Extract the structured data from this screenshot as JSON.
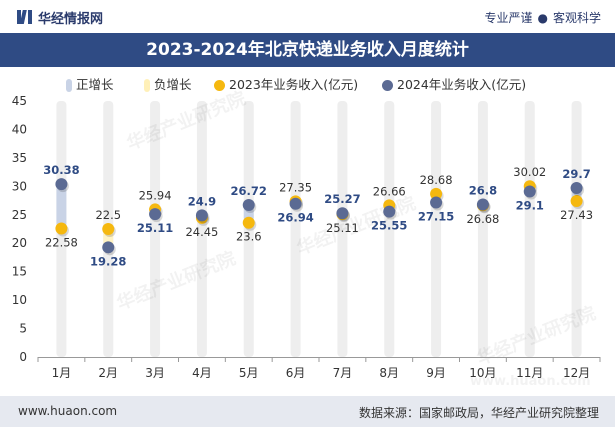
{
  "header": {
    "brand": "华经情报网",
    "tagline_left": "专业严谨",
    "tagline_sep": "●",
    "tagline_right": "客观科学"
  },
  "footer": {
    "website": "www.huaon.com",
    "source": "数据来源：国家邮政局，华经产业研究院整理"
  },
  "colors": {
    "title_bg": "#2f4b84",
    "series_2023": "#f5b80f",
    "series_2024": "#5b6a93",
    "increase_bar": "#c9d3e6",
    "decrease_bar": "#fff3c4",
    "column_band": "#eeeeee"
  },
  "chart_data": {
    "type": "line",
    "title": "2023-2024年北京快递业务收入月度统计",
    "xlabel": "",
    "ylabel": "",
    "ylim": [
      0,
      45
    ],
    "yticks": [
      0,
      5,
      10,
      15,
      20,
      25,
      30,
      35,
      40,
      45
    ],
    "categories": [
      "1月",
      "2月",
      "3月",
      "4月",
      "5月",
      "6月",
      "7月",
      "8月",
      "9月",
      "10月",
      "11月",
      "12月"
    ],
    "legend": [
      {
        "key": "up",
        "label": "正增长"
      },
      {
        "key": "down",
        "label": "负增长"
      },
      {
        "key": "y2023",
        "label": "2023年业务收入(亿元)"
      },
      {
        "key": "y2024",
        "label": "2024年业务收入(亿元)"
      }
    ],
    "series": [
      {
        "name": "2023年业务收入(亿元)",
        "values": [
          22.58,
          22.5,
          25.94,
          24.45,
          23.6,
          27.35,
          25.11,
          26.66,
          28.68,
          26.68,
          30.02,
          27.43
        ]
      },
      {
        "name": "2024年业务收入(亿元)",
        "values": [
          30.38,
          19.28,
          25.11,
          24.9,
          26.72,
          26.94,
          25.27,
          25.55,
          27.15,
          26.8,
          29.1,
          29.7
        ]
      }
    ],
    "data_labels_2023": [
      "22.58",
      "22.5",
      "25.94",
      "24.45",
      "23.6",
      "27.35",
      "25.11",
      "26.66",
      "28.68",
      "26.68",
      "30.02",
      "27.43"
    ],
    "data_labels_2024": [
      "30.38",
      "19.28",
      "25.11",
      "24.9",
      "26.72",
      "26.94",
      "25.27",
      "25.55",
      "27.15",
      "26.8",
      "29.1",
      "29.7"
    ],
    "watermark": "华经产业研究院",
    "watermark_url": "www.huaon.com"
  }
}
